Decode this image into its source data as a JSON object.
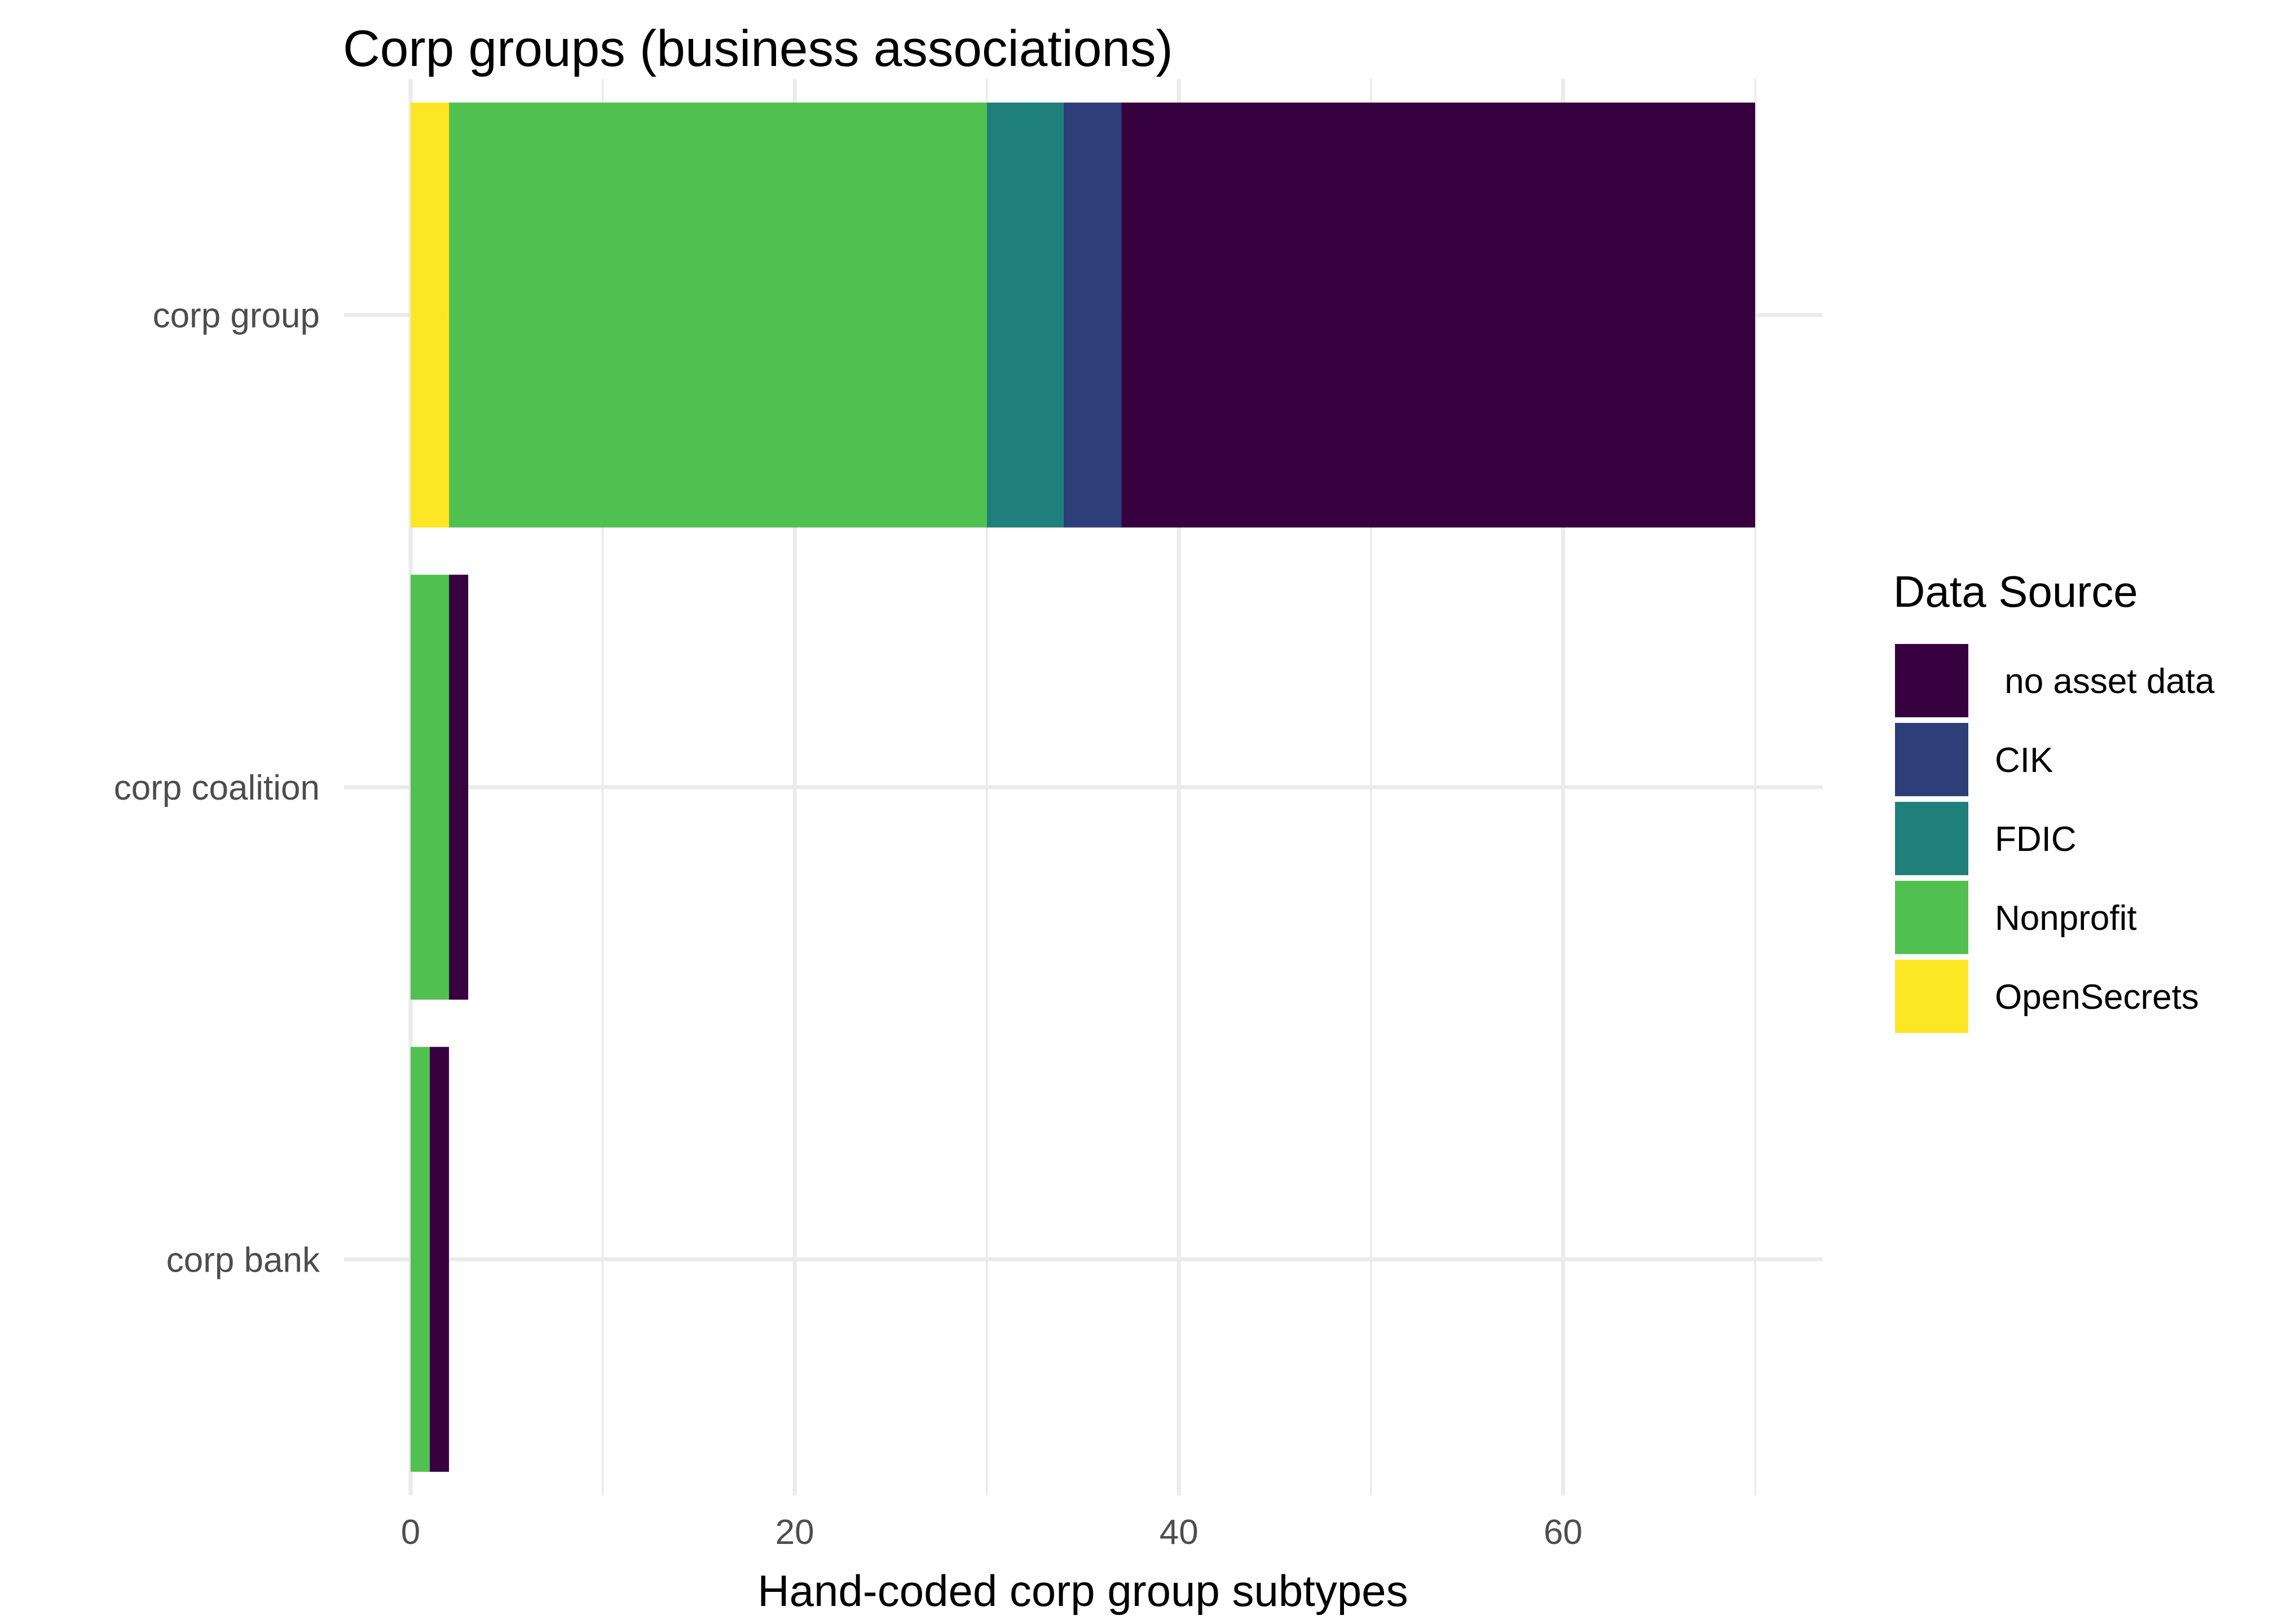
{
  "chart_data": {
    "type": "bar",
    "orientation": "horizontal",
    "stacked": true,
    "title": "Corp groups (business associations)",
    "xlabel": "Hand-coded corp group subtypes",
    "ylabel": "",
    "xlim": [
      0,
      73.5
    ],
    "x_ticks": [
      0,
      20,
      40,
      60
    ],
    "x_tick_labels": [
      "0",
      "20",
      "40",
      "60"
    ],
    "categories": [
      "corp group",
      "corp coalition",
      "corp bank"
    ],
    "series": [
      {
        "name": "OpenSecrets",
        "color": "#fde725",
        "values": [
          2,
          0,
          0
        ]
      },
      {
        "name": "Nonprofit",
        "color": "#50c151",
        "values": [
          28,
          2,
          1
        ]
      },
      {
        "name": "FDIC",
        "color": "#1f7f7a",
        "values": [
          4,
          0,
          0
        ]
      },
      {
        "name": "CIK",
        "color": "#2e3e79",
        "values": [
          3,
          0,
          0
        ]
      },
      {
        "name": " no asset data",
        "color": "#370140",
        "values": [
          33,
          1,
          1
        ]
      }
    ],
    "grid": true,
    "legend": {
      "title": "Data Source",
      "position": "right",
      "order": [
        " no asset data",
        "CIK",
        "FDIC",
        "Nonprofit",
        "OpenSecrets"
      ]
    }
  }
}
